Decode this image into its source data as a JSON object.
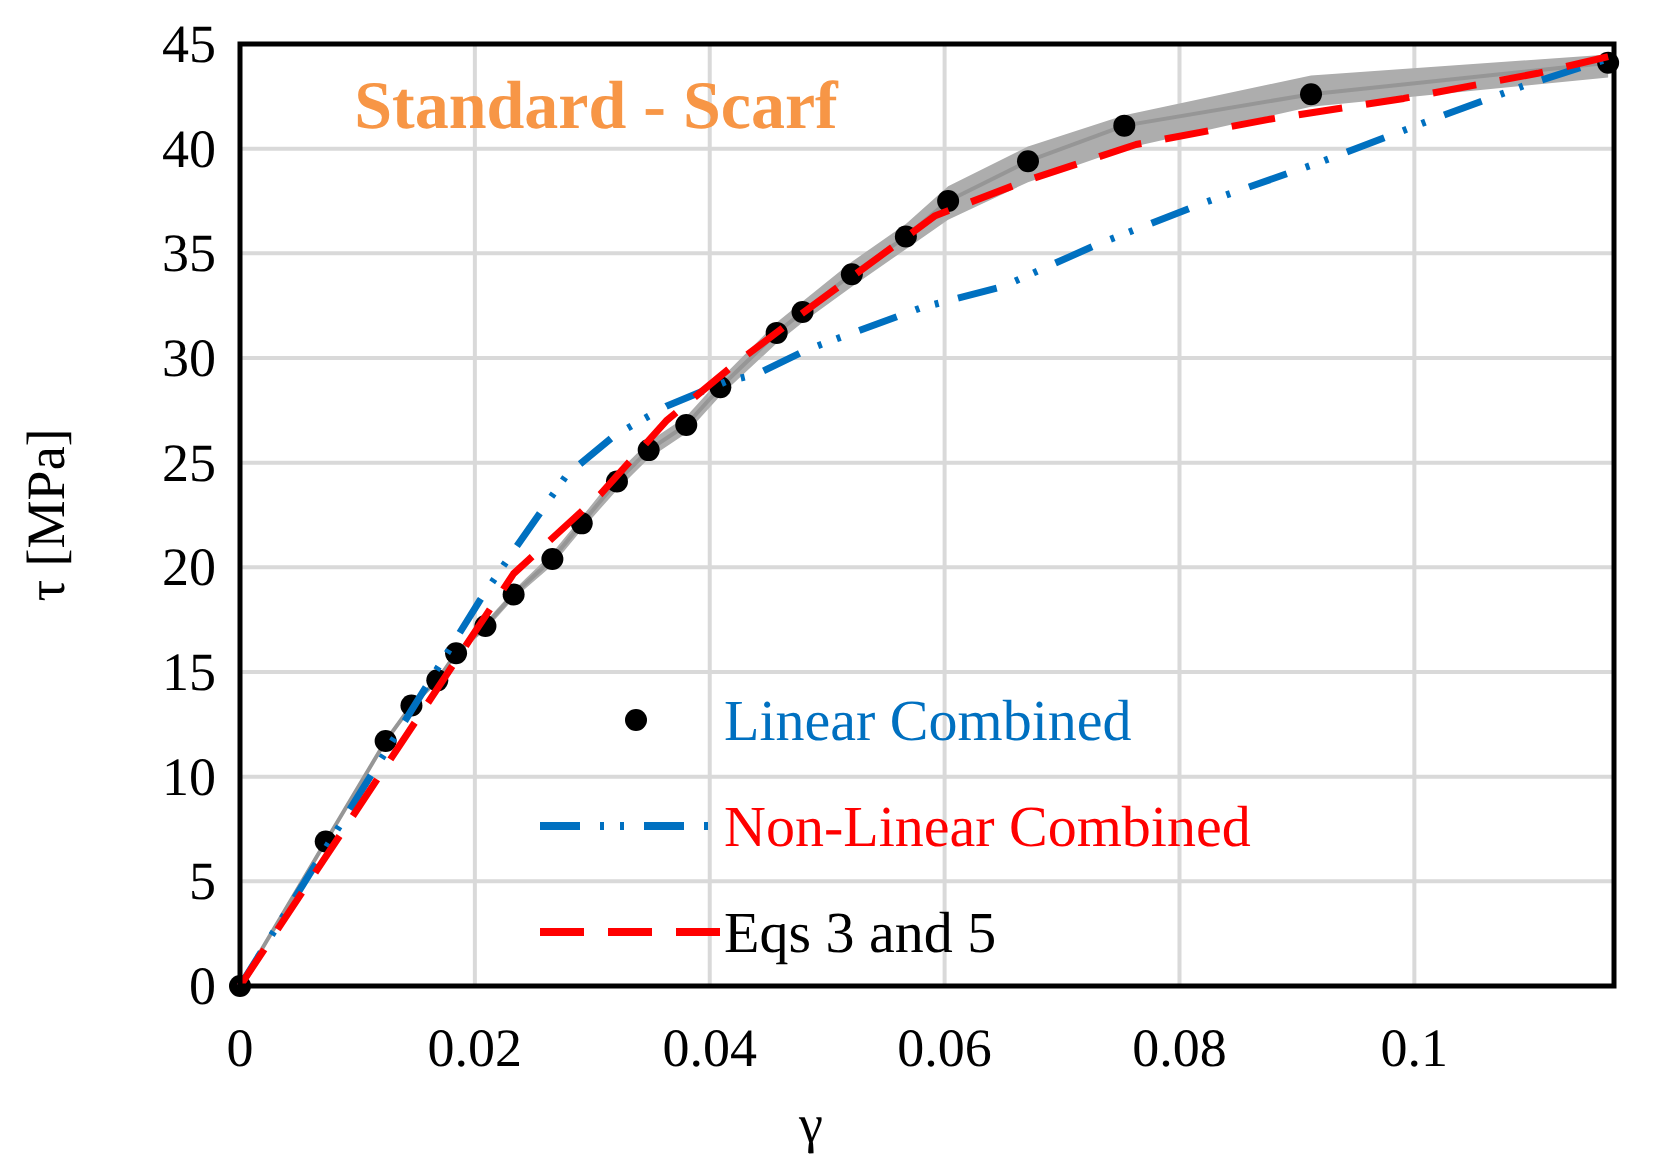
{
  "chart_data": {
    "type": "scatter",
    "title": "Standard - Scarf",
    "xlabel": "γ",
    "ylabel": "τ [MPa]",
    "xlim": [
      0,
      0.117
    ],
    "ylim": [
      0,
      45
    ],
    "xticks": [
      0,
      0.02,
      0.04,
      0.06,
      0.08,
      0.1
    ],
    "yticks": [
      0,
      5,
      10,
      15,
      20,
      25,
      30,
      35,
      40,
      45
    ],
    "grid": true,
    "legend": "bottom right",
    "series": [
      {
        "type": "line",
        "color": "#969696",
        "marker": "none",
        "line_style": "solid",
        "x": [
          0,
          0.0073,
          0.0124,
          0.0146,
          0.0168,
          0.0184,
          0.0209,
          0.0233,
          0.0266,
          0.0291,
          0.0321,
          0.0348,
          0.038,
          0.0409,
          0.0457,
          0.0479,
          0.0521,
          0.0567,
          0.0603,
          0.0671,
          0.0753,
          0.0912,
          0.1165
        ],
        "values": [
          0,
          6.9,
          11.7,
          13.4,
          14.6,
          15.9,
          17.2,
          18.7,
          20.4,
          22.1,
          24.1,
          25.6,
          26.8,
          28.6,
          31.2,
          32.2,
          34.0,
          35.8,
          37.5,
          39.4,
          41.1,
          42.6,
          44.1
        ],
        "lower": [
          0,
          6.8,
          11.6,
          13.3,
          14.5,
          15.8,
          17.0,
          18.5,
          20.1,
          21.8,
          23.7,
          25.2,
          26.4,
          28.2,
          30.7,
          31.7,
          33.4,
          35.2,
          36.6,
          38.4,
          40.0,
          42.0,
          43.4
        ],
        "upper": [
          0,
          7.0,
          11.8,
          13.5,
          14.7,
          16.0,
          17.4,
          18.9,
          20.7,
          22.4,
          24.5,
          26.0,
          27.2,
          29.0,
          31.7,
          32.7,
          34.6,
          36.4,
          38.2,
          40.1,
          41.6,
          43.5,
          44.5
        ]
      },
      {
        "name": "Linear Combined",
        "color": "#000000",
        "marker": "circle",
        "x": [
          0,
          0.0073,
          0.0124,
          0.0146,
          0.0168,
          0.0184,
          0.0209,
          0.0233,
          0.0266,
          0.0291,
          0.0321,
          0.0348,
          0.038,
          0.0409,
          0.0457,
          0.0479,
          0.0521,
          0.0567,
          0.0603,
          0.0671,
          0.0753,
          0.0912,
          0.1165
        ],
        "values": [
          0,
          6.9,
          11.7,
          13.4,
          14.6,
          15.9,
          17.2,
          18.7,
          20.4,
          22.1,
          24.1,
          25.6,
          26.8,
          28.6,
          31.2,
          32.2,
          34.0,
          35.8,
          37.5,
          39.4,
          41.1,
          42.6,
          44.1
        ]
      },
      {
        "type": "line",
        "name": "Non-Linear Combined",
        "color": "#0070c0",
        "marker": "none",
        "line_style": "dashdot",
        "x": [
          0,
          0.0204,
          0.0233,
          0.0278,
          0.0319,
          0.0363,
          0.0415,
          0.0439,
          0.0483,
          0.058,
          0.0649,
          0.0729,
          0.082,
          0.0922,
          0.1025,
          0.1093,
          0.1165
        ],
        "values": [
          0,
          18.4,
          20.8,
          24.4,
          26.3,
          27.7,
          28.9,
          29.2,
          30.4,
          32.4,
          33.4,
          35.4,
          37.4,
          39.4,
          41.6,
          43.0,
          44.3
        ]
      },
      {
        "type": "line",
        "name": "Eqs 3 and 5",
        "color": "#ff0000",
        "marker": "none",
        "line_style": "dashed",
        "x": [
          0,
          0.0233,
          0.0307,
          0.0363,
          0.0421,
          0.0478,
          0.0575,
          0.0592,
          0.0671,
          0.0763,
          0.0876,
          0.0991,
          0.1105,
          0.1165
        ],
        "values": [
          0,
          19.7,
          23.5,
          27.0,
          29.7,
          32.1,
          36.1,
          36.8,
          38.5,
          40.2,
          41.4,
          42.4,
          43.6,
          44.4
        ]
      }
    ]
  }
}
